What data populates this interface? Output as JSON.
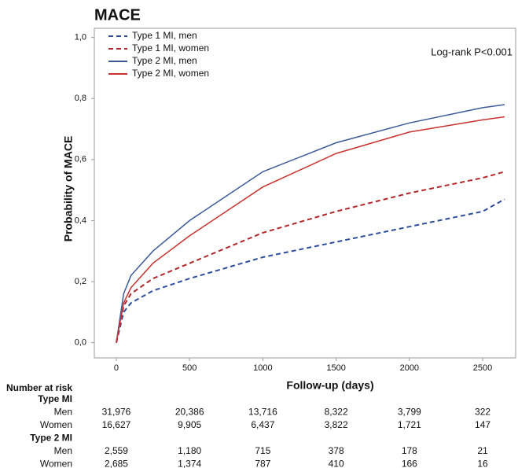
{
  "chart_data": {
    "type": "line",
    "title": "MACE",
    "y_label": "Probability of MACE",
    "x_label": "Follow-up (days)",
    "annotation": "Log-rank P<0.001",
    "x": [
      0,
      50,
      100,
      250,
      500,
      1000,
      1500,
      2000,
      2500,
      2650
    ],
    "series": [
      {
        "name": "Type 1 MI, men",
        "color": "#2e4d9b",
        "style": "dashed",
        "values": [
          0,
          0.1,
          0.13,
          0.17,
          0.21,
          0.28,
          0.33,
          0.38,
          0.43,
          0.47
        ]
      },
      {
        "name": "Type 1 MI, women",
        "color": "#b3262a",
        "style": "dashed",
        "values": [
          0,
          0.12,
          0.16,
          0.21,
          0.26,
          0.36,
          0.43,
          0.49,
          0.54,
          0.56
        ]
      },
      {
        "name": "Type 2 MI, men",
        "color": "#3d5a98",
        "style": "solid",
        "values": [
          0,
          0.16,
          0.22,
          0.3,
          0.4,
          0.56,
          0.655,
          0.72,
          0.77,
          0.78
        ]
      },
      {
        "name": "Type 2 MI, women",
        "color": "#c9322f",
        "style": "solid",
        "values": [
          0,
          0.13,
          0.18,
          0.26,
          0.35,
          0.51,
          0.62,
          0.69,
          0.73,
          0.74
        ]
      }
    ],
    "xlim": [
      -150,
      2725
    ],
    "ylim": [
      -0.05,
      1.03
    ],
    "xticks": [
      0,
      500,
      1000,
      1500,
      2000,
      2500
    ],
    "yticks": [
      {
        "value": 0,
        "label": "0,0"
      },
      {
        "value": 0.2,
        "label": "0,2"
      },
      {
        "value": 0.4,
        "label": "0,4"
      },
      {
        "value": 0.6,
        "label": "0,6"
      },
      {
        "value": 0.8,
        "label": "0,8"
      },
      {
        "value": 1,
        "label": "1,0"
      }
    ],
    "grid": false,
    "legend": "top-left",
    "risk_table": {
      "title": "Number at risk",
      "groups": [
        {
          "name": "Type MI",
          "rows": [
            {
              "label": "Men",
              "values": [
                "31,976",
                "20,386",
                "13,716",
                "8,322",
                "3,799",
                "322"
              ]
            },
            {
              "label": "Women",
              "values": [
                "16,627",
                "9,905",
                "6,437",
                "3,822",
                "1,721",
                "147"
              ]
            }
          ]
        },
        {
          "name": "Type 2 MI",
          "rows": [
            {
              "label": "Men",
              "values": [
                "2,559",
                "1,180",
                "715",
                "378",
                "178",
                "21"
              ]
            },
            {
              "label": "Women",
              "values": [
                "2,685",
                "1,374",
                "787",
                "410",
                "166",
                "16"
              ]
            }
          ]
        }
      ]
    }
  }
}
